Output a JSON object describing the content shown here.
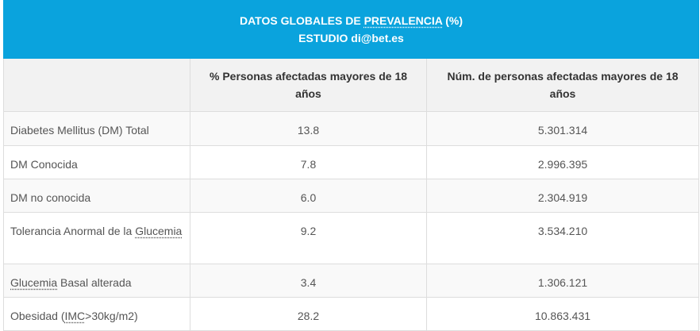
{
  "title": {
    "line1_prefix": "DATOS GLOBALES DE ",
    "line1_abbr": "PREVALENCIA",
    "line1_suffix": " (%)",
    "line2": "ESTUDIO di@bet.es"
  },
  "columns": [
    "",
    "% Personas afectadas mayores de 18 años",
    "Núm. de personas afectadas mayores de 18 años"
  ],
  "rows": [
    {
      "label": "Diabetes Mellitus (DM) Total",
      "percent": "13.8",
      "count": "5.301.314"
    },
    {
      "label": "DM Conocida",
      "percent": "7.8",
      "count": "2.996.395"
    },
    {
      "label": "DM no conocida",
      "percent": "6.0",
      "count": "2.304.919"
    },
    {
      "label_prefix": "Tolerancia Anormal de la ",
      "label_abbr": "Glucemia",
      "percent": "9.2",
      "count": "3.534.210"
    },
    {
      "label_abbr": "Glucemia",
      "label_suffix": " Basal alterada",
      "percent": "3.4",
      "count": "1.306.121"
    },
    {
      "label_prefix": "Obesidad (",
      "label_abbr": "IMC",
      "label_suffix": ">30kg/m2)",
      "percent": "28.2",
      "count": "10.863.431"
    }
  ],
  "colors": {
    "header_bg": "#0aa3dd",
    "header_text": "#ffffff",
    "column_head_bg": "#f2f2f2",
    "border": "#dddddd"
  }
}
